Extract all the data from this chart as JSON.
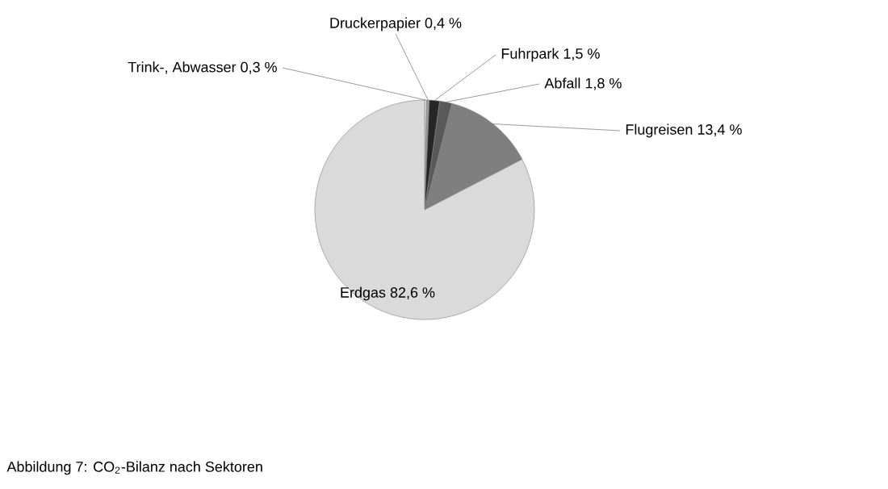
{
  "chart_data": {
    "type": "pie",
    "categories": [
      "Trink-, Abwasser",
      "Druckerpapier",
      "Fuhrpark",
      "Abfall",
      "Flugreisen",
      "Erdgas"
    ],
    "values": [
      0.3,
      0.4,
      1.5,
      1.8,
      13.4,
      82.6
    ],
    "value_labels": [
      "0,3 %",
      "0,4 %",
      "1,5 %",
      "1,8 %",
      "13,4 %",
      "82,6 %"
    ],
    "colors": [
      "#e6e6e6",
      "#9a9a9a",
      "#262626",
      "#595959",
      "#7f7f7f",
      "#dadada"
    ],
    "annotations": [
      "Abbildung 7: CO$_{2}$-Bilanz nach Sektoren"
    ]
  }
}
